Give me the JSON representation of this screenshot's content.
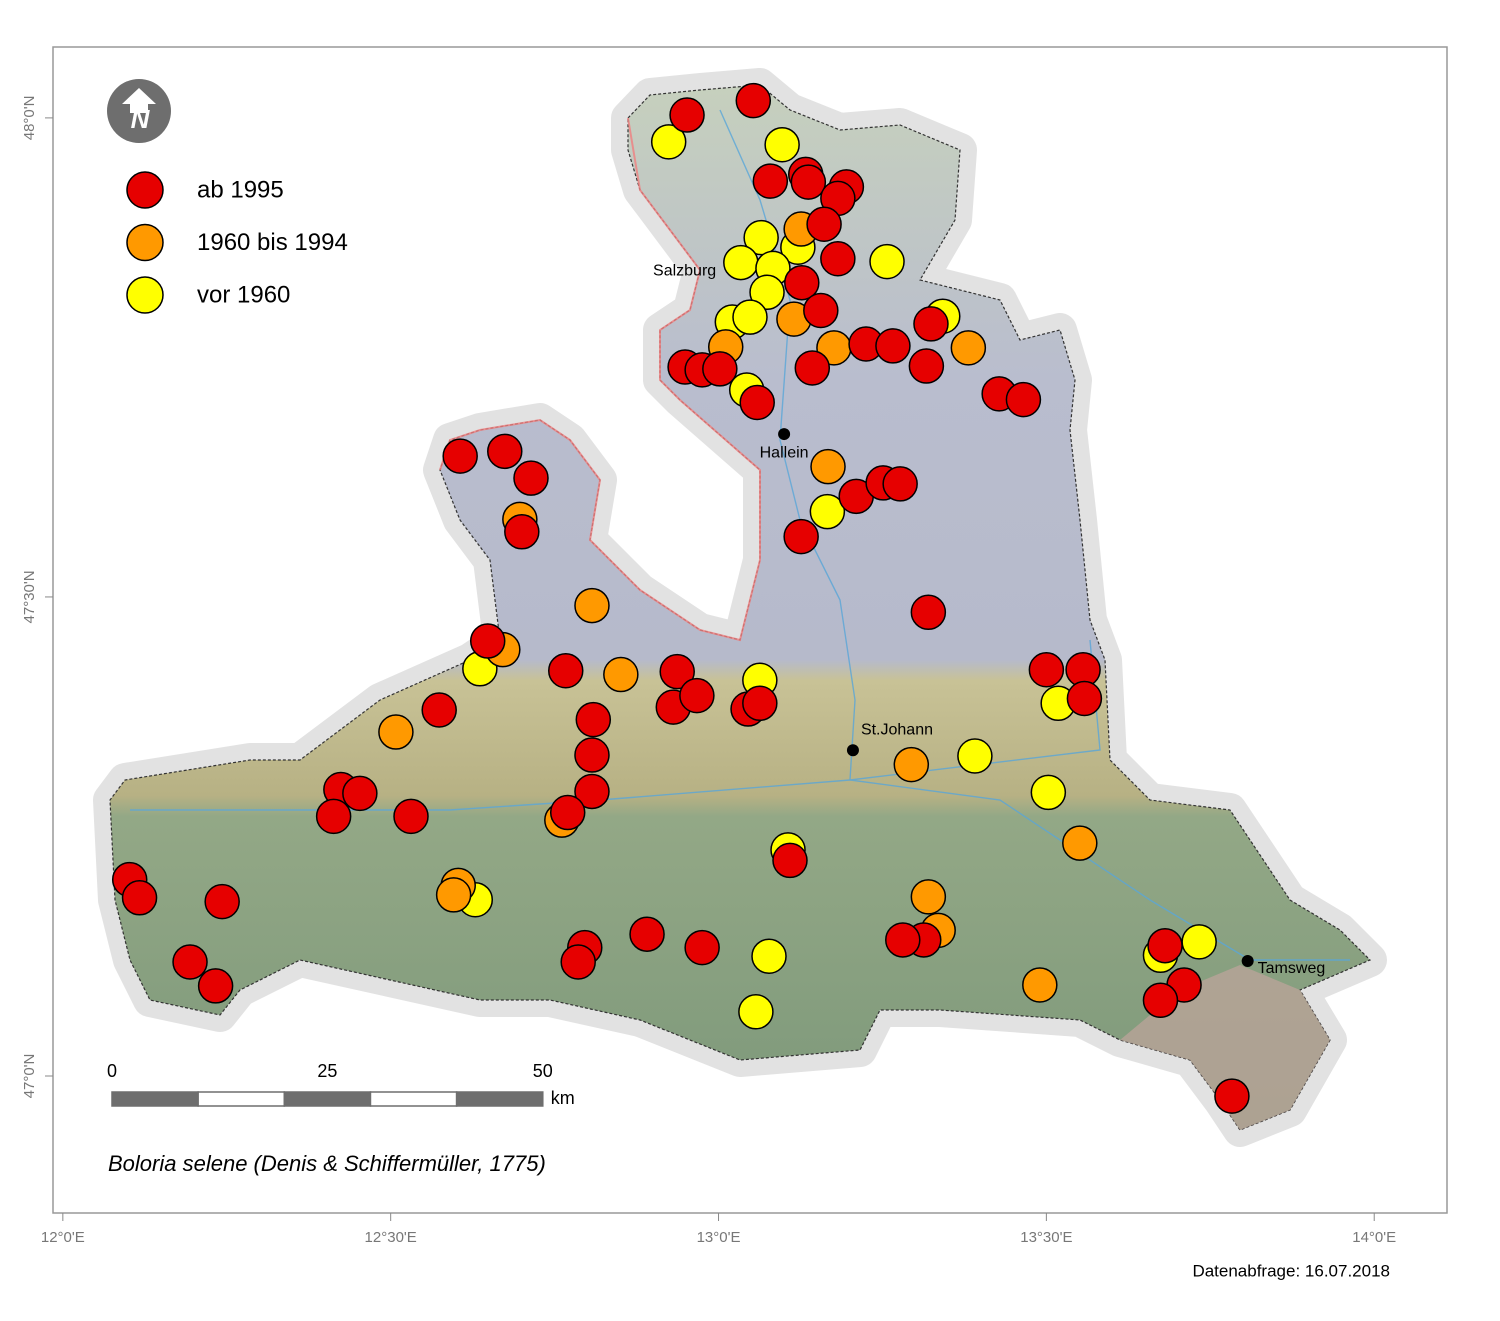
{
  "map": {
    "title": "Boloria selene (Denis & Schiffermüller, 1775)",
    "footer": "Datenabfrage: 16.07.2018",
    "xlim": [
      11.985,
      14.111
    ],
    "ylim": [
      46.857,
      48.074
    ],
    "xticks": [
      {
        "value": 12,
        "label": "12°0'E"
      },
      {
        "value": 12.5,
        "label": "12°30'E"
      },
      {
        "value": 13,
        "label": "13°0'E"
      },
      {
        "value": 13.5,
        "label": "13°30'E"
      },
      {
        "value": 14,
        "label": "14°0'E"
      }
    ],
    "yticks": [
      {
        "value": 47,
        "label": "47°0'N"
      },
      {
        "value": 47.5,
        "label": "47°30'N"
      },
      {
        "value": 48,
        "label": "48°0'N"
      }
    ],
    "scale": {
      "ticks": [
        0,
        25,
        50
      ],
      "unit": "km"
    },
    "towns": [
      {
        "name": "Salzburg",
        "lon": 13.03,
        "lat": 47.84
      },
      {
        "name": "Hallein",
        "lon": 13.1,
        "lat": 47.67
      },
      {
        "name": "St.Johann",
        "lon": 13.205,
        "lat": 47.34
      },
      {
        "name": "Tamsweg",
        "lon": 13.807,
        "lat": 47.12
      }
    ],
    "series": [
      {
        "name": "vor 1960",
        "color": "#ffff00",
        "lon": [
          12.924,
          13.097,
          13.065,
          13.121,
          13.034,
          13.083,
          13.074,
          13.021,
          13.048,
          13.257,
          13.342,
          13.043,
          13.166,
          12.636,
          13.063,
          13.518,
          13.391,
          13.503,
          13.106,
          12.629,
          13.733,
          13.674,
          13.077,
          13.057
        ],
        "lat": [
          47.975,
          47.972,
          47.875,
          47.865,
          47.849,
          47.843,
          47.818,
          47.787,
          47.792,
          47.85,
          47.793,
          47.716,
          47.589,
          47.425,
          47.413,
          47.389,
          47.334,
          47.296,
          47.236,
          47.184,
          47.14,
          47.126,
          47.125,
          47.067
        ]
      },
      {
        "name": "1960 bis 1994",
        "color": "#ff9900",
        "lon": [
          13.126,
          13.115,
          13.176,
          13.381,
          13.011,
          13.167,
          12.697,
          12.807,
          12.851,
          12.671,
          12.508,
          13.294,
          13.551,
          12.761,
          12.603,
          12.596,
          13.32,
          13.335,
          13.49
        ],
        "lat": [
          47.884,
          47.79,
          47.76,
          47.76,
          47.761,
          47.636,
          47.581,
          47.491,
          47.419,
          47.445,
          47.359,
          47.325,
          47.243,
          47.267,
          47.199,
          47.189,
          47.187,
          47.152,
          47.095
        ]
      },
      {
        "name": "ab 1995",
        "color": "#e60000",
        "lon": [
          12.952,
          13.053,
          13.079,
          13.133,
          13.137,
          13.195,
          13.182,
          13.161,
          13.182,
          13.127,
          13.156,
          13.324,
          13.225,
          13.266,
          13.143,
          13.317,
          13.428,
          13.465,
          12.949,
          12.975,
          13.002,
          13.059,
          12.606,
          12.674,
          12.714,
          12.7,
          13.126,
          13.21,
          13.251,
          13.277,
          13.32,
          12.648,
          12.767,
          12.937,
          12.931,
          12.967,
          13.045,
          13.063,
          12.809,
          12.807,
          12.807,
          13.5,
          13.556,
          13.558,
          12.574,
          12.424,
          12.453,
          12.413,
          12.531,
          12.77,
          13.109,
          13.313,
          13.281,
          12.102,
          12.117,
          12.243,
          12.194,
          12.233,
          12.891,
          12.975,
          12.796,
          12.786,
          13.681,
          13.71,
          13.674,
          13.783
        ],
        "lat": [
          48.003,
          48.018,
          47.934,
          47.941,
          47.933,
          47.928,
          47.916,
          47.889,
          47.853,
          47.828,
          47.799,
          47.785,
          47.764,
          47.762,
          47.739,
          47.741,
          47.712,
          47.706,
          47.74,
          47.737,
          47.738,
          47.703,
          47.647,
          47.652,
          47.624,
          47.568,
          47.563,
          47.605,
          47.619,
          47.618,
          47.484,
          47.454,
          47.423,
          47.422,
          47.385,
          47.397,
          47.383,
          47.389,
          47.372,
          47.335,
          47.297,
          47.424,
          47.424,
          47.394,
          47.382,
          47.299,
          47.295,
          47.271,
          47.271,
          47.275,
          47.225,
          47.142,
          47.142,
          47.205,
          47.186,
          47.182,
          47.119,
          47.094,
          47.148,
          47.134,
          47.134,
          47.119,
          47.136,
          47.095,
          47.079,
          46.979
        ]
      }
    ]
  }
}
